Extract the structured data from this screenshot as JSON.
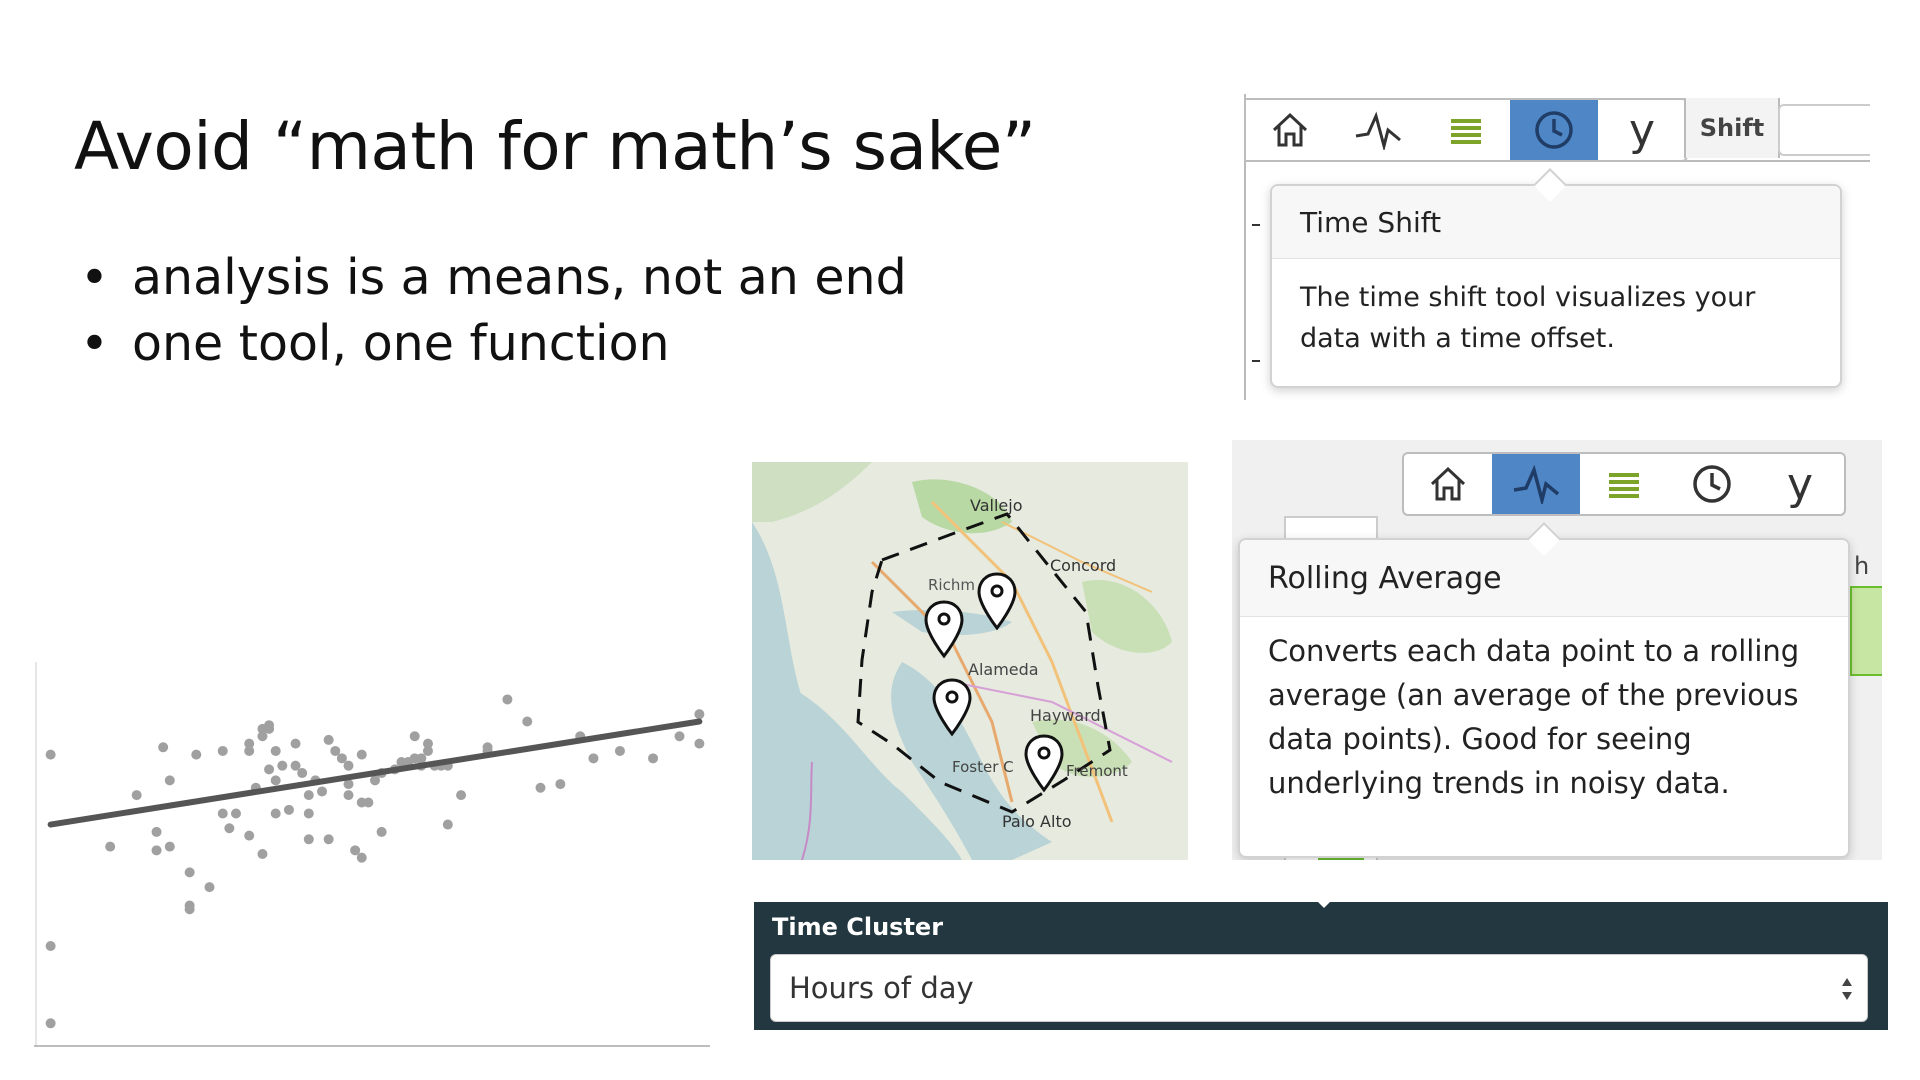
{
  "slide": {
    "title": "Avoid “math for math’s sake”",
    "bullets": [
      "analysis is a means, not an end",
      "one tool, one function"
    ]
  },
  "time_shift_panel": {
    "toolbar_buttons": [
      {
        "icon": "home-icon",
        "active": false
      },
      {
        "icon": "rolling-average-icon",
        "active": false
      },
      {
        "icon": "list-icon",
        "active": false
      },
      {
        "icon": "clock-icon",
        "active": true
      },
      {
        "icon": "y-axis-icon",
        "label": "y",
        "active": false
      }
    ],
    "shift_label": "Shift",
    "tooltip_title": "Time Shift",
    "tooltip_body": "The time shift tool visualizes your data with a time offset."
  },
  "rolling_panel": {
    "toolbar_buttons": [
      {
        "icon": "home-icon",
        "active": false
      },
      {
        "icon": "rolling-average-icon",
        "active": true
      },
      {
        "icon": "list-icon",
        "active": false
      },
      {
        "icon": "clock-icon",
        "active": false
      },
      {
        "icon": "y-axis-icon",
        "label": "y",
        "active": false
      }
    ],
    "tooltip_title": "Rolling Average",
    "tooltip_body": "Converts each data point to a rolling average (an average of the previous data points). Good for seeing underlying trends in noisy data.",
    "partial_text": "h"
  },
  "map": {
    "places": [
      "Vallejo",
      "Concord",
      "Richm",
      "Alameda",
      "Hayward",
      "Foster C",
      "Fremont",
      "Palo Alto"
    ],
    "marker_count": 4
  },
  "time_cluster": {
    "label": "Time Cluster",
    "selected": "Hours of day"
  },
  "colors": {
    "accent_blue": "#4f86c6",
    "list_green": "#7ba428",
    "cluster_bg": "#22373f",
    "scatter_points": "#a0a0a0",
    "trend_line": "#555555"
  },
  "chart_data": {
    "type": "scatter",
    "title": "",
    "xlabel": "",
    "ylabel": "",
    "xlim": [
      0,
      100
    ],
    "ylim": [
      0,
      100
    ],
    "grid": false,
    "points": [
      [
        1,
        77
      ],
      [
        1,
        25
      ],
      [
        1,
        4
      ],
      [
        10,
        52
      ],
      [
        14,
        66
      ],
      [
        17,
        56
      ],
      [
        17,
        51
      ],
      [
        18,
        79
      ],
      [
        19,
        52
      ],
      [
        19,
        70
      ],
      [
        22,
        45
      ],
      [
        22,
        36
      ],
      [
        22,
        35
      ],
      [
        23,
        77
      ],
      [
        25,
        41
      ],
      [
        27,
        61
      ],
      [
        27,
        78
      ],
      [
        28,
        57
      ],
      [
        29,
        61
      ],
      [
        31,
        55
      ],
      [
        31,
        78
      ],
      [
        31,
        80
      ],
      [
        32,
        68
      ],
      [
        33,
        84
      ],
      [
        33,
        50
      ],
      [
        33,
        82
      ],
      [
        34,
        85
      ],
      [
        34,
        73
      ],
      [
        34,
        84
      ],
      [
        35,
        61
      ],
      [
        35,
        78
      ],
      [
        35,
        70
      ],
      [
        36,
        74
      ],
      [
        37,
        62
      ],
      [
        38,
        74
      ],
      [
        38,
        80
      ],
      [
        39,
        72
      ],
      [
        40,
        61
      ],
      [
        40,
        66
      ],
      [
        40,
        54
      ],
      [
        41,
        70
      ],
      [
        42,
        67
      ],
      [
        43,
        81
      ],
      [
        43,
        54
      ],
      [
        44,
        78
      ],
      [
        45,
        76
      ],
      [
        46,
        74
      ],
      [
        46,
        66
      ],
      [
        46,
        69
      ],
      [
        47,
        51
      ],
      [
        48,
        77
      ],
      [
        48,
        64
      ],
      [
        48,
        49
      ],
      [
        49,
        64
      ],
      [
        50,
        70
      ],
      [
        51,
        72
      ],
      [
        51,
        56
      ],
      [
        53,
        73
      ],
      [
        54,
        75
      ],
      [
        55,
        75
      ],
      [
        56,
        82
      ],
      [
        56,
        76
      ],
      [
        57,
        74
      ],
      [
        57,
        76
      ],
      [
        58,
        78
      ],
      [
        58,
        80
      ],
      [
        59,
        74
      ],
      [
        60,
        74
      ],
      [
        61,
        58
      ],
      [
        61,
        74
      ],
      [
        63,
        66
      ],
      [
        67,
        79
      ],
      [
        67,
        78
      ],
      [
        70,
        92
      ],
      [
        73,
        86
      ],
      [
        75,
        68
      ],
      [
        78,
        69
      ],
      [
        81,
        82
      ],
      [
        83,
        76
      ],
      [
        87,
        78
      ],
      [
        92,
        76
      ],
      [
        96,
        82
      ],
      [
        99,
        80
      ],
      [
        99,
        88
      ]
    ],
    "trend_line": [
      [
        1,
        58
      ],
      [
        99,
        86
      ]
    ]
  }
}
